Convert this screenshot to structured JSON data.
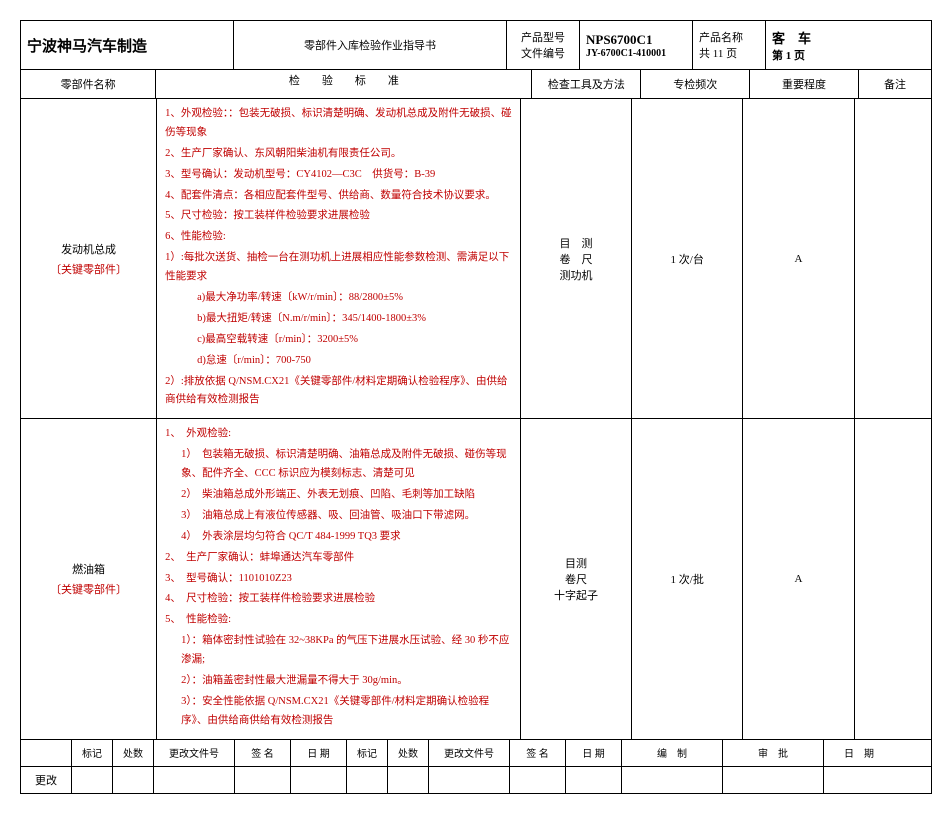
{
  "header": {
    "company": "宁波神马汽车制造",
    "doc_title": "零部件入库检验作业指导书",
    "model_label": "产品型号",
    "model_value": "NPS6700C1",
    "file_label": "文件编号",
    "file_value": "JY-6700C1-410001",
    "name_label": "产品名称",
    "name_value": "客　车",
    "page_label": "共 11 页",
    "page_value": "第 1 页"
  },
  "columns": {
    "part_name": "零部件名称",
    "standard_label": "检　　验　　标　　准",
    "tool_label": "检查工具及方法",
    "freq_label": "专检频次",
    "level_label": "重要程度",
    "note_label": "备注"
  },
  "row1": {
    "name_main": "发动机总成",
    "name_sub": "〔关键零部件〕",
    "lines": [
      "1、外观检验：：包装无破损、标识清楚明确、发动机总成及附件无破损、碰伤等现象",
      "2、生产厂家确认、东风朝阳柴油机有限责任公司。",
      "3、型号确认：发动机型号：CY4102—C3C　供货号：B-39",
      "4、配套件清点：各相应配套件型号、供给商、数量符合技术协议要求。",
      "5、尺寸检验：按工装样件检验要求进展检验",
      "6、性能检验:",
      "1）:每批次送货、抽检一台在测功机上进展相应性能参数检测、需满足以下性能要求",
      "a)最大净功率/转速〔kW/r/min〕：88/2800±5%",
      "b)最大扭矩/转速〔N.m/r/min〕：345/1400-1800±3%",
      "c)最高空载转速〔r/min〕：3200±5%",
      "d)怠速〔r/min〕：700-750",
      "2）:排放依据 Q/NSM.CX21《关键零部件/材料定期确认检验程序》、由供给商供给有效检测报告"
    ],
    "indent_levels": [
      0,
      0,
      0,
      0,
      0,
      0,
      0,
      2,
      2,
      2,
      2,
      0
    ],
    "tools": [
      "目　测",
      "卷　尺",
      "测功机"
    ],
    "freq": "1 次/台",
    "level": "A"
  },
  "row2": {
    "name_main": "燃油箱",
    "name_sub": "〔关键零部件〕",
    "lines": [
      "1、　外观检验:",
      "1）　包装箱无破损、标识清楚明确、油箱总成及附件无破损、碰伤等现象、配件齐全、CCC 标识应为模刻标志、清楚可见",
      "2）　柴油箱总成外形端正、外表无划痕、凹陷、毛刺等加工缺陷",
      "3）　油箱总成上有液位传感器、吸、回油管、吸油口下带滤网。",
      "4）　外表涂层均匀符合 QC/T 484-1999 TQ3 要求",
      "2、　生产厂家确认：蚌埠通达汽车零部件",
      "3、　型号确认：1101010Z23",
      "4、　尺寸检验：按工装样件检验要求进展检验",
      "5、　性能检验:",
      "1）：箱体密封性试验在 32~38KPa 的气压下进展水压试验、经 30 秒不应渗漏;",
      "2）：油箱盖密封性最大泄漏量不得大于 30g/min。",
      "3）：安全性能依据 Q/NSM.CX21《关键零部件/材料定期确认检验程序》、由供给商供给有效检测报告"
    ],
    "indent_levels": [
      0,
      1,
      1,
      1,
      1,
      0,
      0,
      0,
      0,
      1,
      1,
      1
    ],
    "tools": [
      "目测",
      "卷尺",
      "十字起子"
    ],
    "freq": "1 次/批",
    "level": "A"
  },
  "footer": {
    "labels": [
      "标记",
      "处数",
      "更改文件号",
      "签 名",
      "日 期",
      "标记",
      "处数",
      "更改文件号",
      "签 名",
      "日 期",
      "编　制",
      "审　批",
      "日　期"
    ],
    "change_label": "更改"
  },
  "colors": {
    "red": "#c00000",
    "black": "#000000"
  }
}
